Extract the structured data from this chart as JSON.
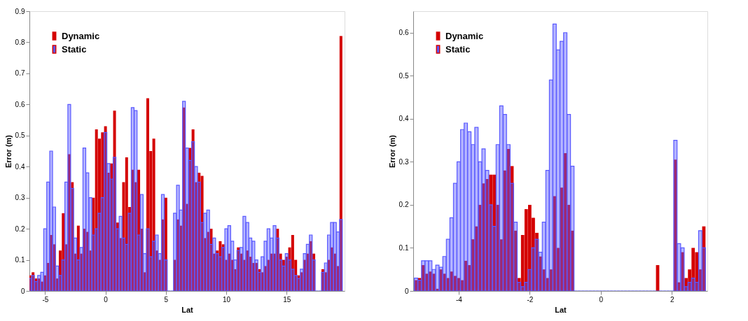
{
  "chart_data": [
    {
      "type": "bar",
      "xlabel": "Lat",
      "ylabel": "Error (m)",
      "legend": "top left",
      "xlim": [
        -6.3,
        19.8
      ],
      "ylim": [
        0,
        0.9
      ],
      "xticks": [
        -5,
        0,
        5,
        10,
        15
      ],
      "yticks": [
        0,
        0.1,
        0.2,
        0.3,
        0.4,
        0.5,
        0.6,
        0.7,
        0.8,
        0.9
      ],
      "x": [
        -6.25,
        -6,
        -5.75,
        -5.5,
        -5.25,
        -5,
        -4.75,
        -4.5,
        -4.25,
        -4,
        -3.75,
        -3.5,
        -3.25,
        -3,
        -2.75,
        -2.5,
        -2.25,
        -2,
        -1.75,
        -1.5,
        -1.25,
        -1,
        -0.75,
        -0.5,
        -0.25,
        0,
        0.25,
        0.5,
        0.75,
        1,
        1.25,
        1.5,
        1.75,
        2,
        2.25,
        2.5,
        2.75,
        3,
        3.25,
        3.5,
        3.75,
        4,
        4.25,
        4.5,
        4.75,
        5,
        5.25,
        5.5,
        5.75,
        6,
        6.25,
        6.5,
        6.75,
        7,
        7.25,
        7.5,
        7.75,
        8,
        8.25,
        8.5,
        8.75,
        9,
        9.25,
        9.5,
        9.75,
        10,
        10.25,
        10.5,
        10.75,
        11,
        11.25,
        11.5,
        11.75,
        12,
        12.25,
        12.5,
        12.75,
        13,
        13.25,
        13.5,
        13.75,
        14,
        14.25,
        14.5,
        14.75,
        15,
        15.25,
        15.5,
        15.75,
        16,
        16.25,
        16.5,
        16.75,
        17,
        17.25,
        17.5,
        17.75,
        18,
        18.25,
        18.5,
        18.75,
        19,
        19.25,
        19.5
      ],
      "series": [
        {
          "name": "Dynamic",
          "color": "#d40000",
          "values": [
            0.05,
            0.06,
            0.04,
            0.04,
            0.03,
            0.05,
            0.09,
            0.18,
            0.15,
            0.04,
            0.13,
            0.25,
            0.15,
            0.44,
            0.35,
            0.12,
            0.21,
            0.12,
            0.2,
            0.19,
            0.13,
            0.3,
            0.52,
            0.49,
            0.51,
            0.53,
            0.38,
            0.41,
            0.58,
            0.22,
            0.17,
            0.35,
            0.43,
            0.27,
            0.39,
            0.35,
            0.39,
            0.2,
            0.06,
            0.62,
            0.45,
            0.49,
            0.13,
            0.1,
            0.23,
            0.3,
            0,
            0,
            0.1,
            0.23,
            0.21,
            0.59,
            0.28,
            0.46,
            0.52,
            0.35,
            0.38,
            0.37,
            0.17,
            0.19,
            0.2,
            0.12,
            0.13,
            0.16,
            0.15,
            0.1,
            0.12,
            0.1,
            0.07,
            0.14,
            0.12,
            0.1,
            0.13,
            0.11,
            0.09,
            0.09,
            0.07,
            0.06,
            0.08,
            0.1,
            0.12,
            0.12,
            0.2,
            0.12,
            0.1,
            0.11,
            0.14,
            0.18,
            0.1,
            0.05,
            0.06,
            0.1,
            0.12,
            0.16,
            0.12,
            0,
            0,
            0.07,
            0.06,
            0.1,
            0.14,
            0.12,
            0.08,
            0.82
          ]
        },
        {
          "name": "Static",
          "color": "#5a5aff",
          "values": [
            0.04,
            0.05,
            0.03,
            0.05,
            0.06,
            0.2,
            0.35,
            0.45,
            0.27,
            0.08,
            0.05,
            0.1,
            0.35,
            0.6,
            0.33,
            0.17,
            0.1,
            0.14,
            0.46,
            0.38,
            0.3,
            0.18,
            0.2,
            0.25,
            0.3,
            0.51,
            0.41,
            0.36,
            0.43,
            0.2,
            0.24,
            0.17,
            0.15,
            0.25,
            0.59,
            0.58,
            0.18,
            0.31,
            0.12,
            0.2,
            0.11,
            0.16,
            0.18,
            0.12,
            0.31,
            0.1,
            0,
            0,
            0.25,
            0.34,
            0.26,
            0.61,
            0.46,
            0.42,
            0.48,
            0.4,
            0.35,
            0.22,
            0.25,
            0.26,
            0.15,
            0.17,
            0.12,
            0.11,
            0.14,
            0.2,
            0.21,
            0.16,
            0.1,
            0.13,
            0.14,
            0.24,
            0.22,
            0.17,
            0.16,
            0.1,
            0.06,
            0.11,
            0.16,
            0.2,
            0.17,
            0.21,
            0.17,
            0.1,
            0.08,
            0.12,
            0.1,
            0.07,
            0.05,
            0.04,
            0.07,
            0.12,
            0.15,
            0.18,
            0.1,
            0,
            0,
            0.06,
            0.09,
            0.18,
            0.22,
            0.22,
            0.19,
            0.23
          ]
        }
      ]
    },
    {
      "type": "bar",
      "xlabel": "Lat",
      "ylabel": "Error (m)",
      "legend": "top left",
      "xlim": [
        -5.28,
        3.0
      ],
      "ylim": [
        0,
        0.65
      ],
      "xticks": [
        -4,
        -2,
        0,
        2
      ],
      "yticks": [
        0,
        0.1,
        0.2,
        0.3,
        0.4,
        0.5,
        0.6
      ],
      "x": [
        -5.2,
        -5.1,
        -5,
        -4.9,
        -4.8,
        -4.7,
        -4.6,
        -4.5,
        -4.4,
        -4.3,
        -4.2,
        -4.1,
        -4,
        -3.9,
        -3.8,
        -3.7,
        -3.6,
        -3.5,
        -3.4,
        -3.3,
        -3.2,
        -3.1,
        -3,
        -2.9,
        -2.8,
        -2.7,
        -2.6,
        -2.5,
        -2.4,
        -2.3,
        -2.2,
        -2.1,
        -2,
        -1.9,
        -1.8,
        -1.7,
        -1.6,
        -1.5,
        -1.4,
        -1.3,
        -1.2,
        -1.1,
        -1,
        -0.9,
        -0.8,
        -0.7,
        -0.6,
        -0.5,
        -0.4,
        -0.3,
        -0.2,
        -0.1,
        0,
        0.1,
        0.2,
        0.3,
        0.4,
        0.5,
        0.6,
        0.7,
        0.8,
        0.9,
        1,
        1.1,
        1.2,
        1.3,
        1.4,
        1.5,
        1.6,
        1.7,
        1.8,
        1.9,
        2,
        2.1,
        2.2,
        2.3,
        2.4,
        2.5,
        2.6,
        2.7,
        2.8,
        2.9
      ],
      "series": [
        {
          "name": "Dynamic",
          "color": "#d40000",
          "values": [
            0.025,
            0.03,
            0.06,
            0.04,
            0.045,
            0.04,
            0.005,
            0.05,
            0.04,
            0.03,
            0.045,
            0.035,
            0.03,
            0.025,
            0.07,
            0.06,
            0.12,
            0.15,
            0.2,
            0.25,
            0.26,
            0.27,
            0.27,
            0.2,
            0.12,
            0.28,
            0.33,
            0.29,
            0.14,
            0.03,
            0.13,
            0.19,
            0.2,
            0.17,
            0.135,
            0.08,
            0.05,
            0.03,
            0.05,
            0.22,
            0.1,
            0.24,
            0.32,
            0.2,
            0.14,
            0,
            0,
            0,
            0,
            0,
            0,
            0,
            0,
            0,
            0,
            0,
            0,
            0,
            0,
            0,
            0,
            0,
            0,
            0,
            0,
            0,
            0,
            0,
            0.06,
            0,
            0,
            0,
            0,
            0.305,
            0.02,
            0.09,
            0.03,
            0.05,
            0.1,
            0.09,
            0.05,
            0.15
          ]
        },
        {
          "name": "Static",
          "color": "#5a5aff",
          "values": [
            0.03,
            0.025,
            0.07,
            0.07,
            0.07,
            0.05,
            0.06,
            0.055,
            0.08,
            0.12,
            0.17,
            0.25,
            0.3,
            0.375,
            0.39,
            0.37,
            0.34,
            0.38,
            0.3,
            0.33,
            0.28,
            0.2,
            0.15,
            0.34,
            0.43,
            0.41,
            0.34,
            0.25,
            0.16,
            0.02,
            0.01,
            0.02,
            0.05,
            0.1,
            0.12,
            0.09,
            0.16,
            0.28,
            0.49,
            0.62,
            0.56,
            0.58,
            0.6,
            0.41,
            0.29,
            0,
            0,
            0,
            0,
            0,
            0,
            0,
            0,
            0,
            0,
            0,
            0,
            0,
            0,
            0,
            0,
            0,
            0,
            0,
            0,
            0,
            0,
            0,
            0,
            0,
            0,
            0,
            0,
            0.35,
            0.11,
            0.1,
            0.01,
            0.02,
            0.03,
            0.02,
            0.14,
            0.1
          ]
        }
      ]
    }
  ]
}
